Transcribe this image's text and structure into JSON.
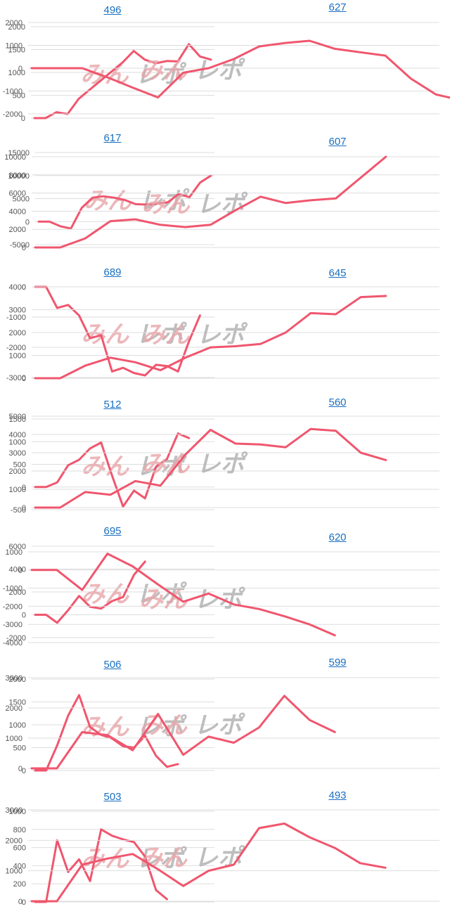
{
  "page": {
    "line_color": "#f0566e",
    "title_color": "#1a6fc0",
    "watermark": "みんレポ"
  },
  "charts": [
    {
      "title": "496",
      "yticks": [
        0,
        500,
        1000,
        1500,
        2000
      ],
      "ylim": [
        0,
        2000
      ],
      "values": [
        0,
        0,
        130,
        90,
        420,
        620,
        820,
        1020,
        1220,
        1470,
        1280,
        1200,
        1250,
        1240,
        1620,
        1350,
        1280
      ]
    },
    {
      "title": "627",
      "yticks": [
        -2000,
        -1000,
        0,
        1000,
        2000
      ],
      "ylim": [
        -2000,
        2000
      ],
      "values": [
        0,
        0,
        0,
        -400,
        -850,
        -1280,
        -200,
        0,
        400,
        950,
        1100,
        1200,
        850,
        700,
        550,
        -450,
        -1150,
        -1400
      ]
    },
    {
      "title": "617",
      "yticks": [
        -5000,
        0,
        5000,
        10000,
        15000
      ],
      "ylim": [
        -5000,
        15000
      ],
      "values": [
        0,
        0,
        -1000,
        -1500,
        3000,
        5200,
        5500,
        5200,
        4700,
        3800,
        3700,
        3900,
        4200,
        6000,
        5300,
        8500,
        10000
      ]
    },
    {
      "title": "607",
      "yticks": [
        0,
        2000,
        4000,
        6000,
        8000,
        10000
      ],
      "ylim": [
        0,
        10000
      ],
      "values": [
        0,
        0,
        1000,
        2900,
        3100,
        2500,
        2250,
        2500,
        4100,
        5600,
        4900,
        5200,
        5400,
        7700,
        10000
      ]
    },
    {
      "title": "689",
      "yticks": [
        -3000,
        -2000,
        -1000,
        0
      ],
      "ylim": [
        -3000,
        0
      ],
      "values": [
        0,
        0,
        -700,
        -600,
        -950,
        -1700,
        -1600,
        -2800,
        -2680,
        -2850,
        -2930,
        -2580,
        -2620,
        -2800,
        -1800,
        -950
      ]
    },
    {
      "title": "645",
      "yticks": [
        0,
        1000,
        2000,
        3000,
        4000
      ],
      "ylim": [
        0,
        4000
      ],
      "values": [
        0,
        0,
        550,
        900,
        700,
        350,
        900,
        1350,
        1400,
        1500,
        2000,
        2850,
        2800,
        3550,
        3600
      ]
    },
    {
      "title": "512",
      "yticks": [
        -500,
        0,
        500,
        1000,
        1500
      ],
      "ylim": [
        -500,
        1500
      ],
      "values": [
        0,
        0,
        100,
        480,
        600,
        850,
        980,
        250,
        -430,
        -80,
        -250,
        450,
        620,
        1180,
        1080
      ]
    },
    {
      "title": "560",
      "yticks": [
        0,
        1000,
        2000,
        3000,
        4000,
        5000
      ],
      "ylim": [
        0,
        5000
      ],
      "values": [
        0,
        0,
        850,
        700,
        1450,
        1200,
        2900,
        4250,
        3500,
        3450,
        3300,
        4300,
        4200,
        3000,
        2600
      ]
    },
    {
      "title": "695",
      "yticks": [
        -2000,
        0,
        2000,
        4000,
        6000
      ],
      "ylim": [
        -2000,
        6000
      ],
      "values": [
        0,
        0,
        -700,
        400,
        1650,
        700,
        550,
        1200,
        1550,
        3500,
        4650
      ]
    },
    {
      "title": "620",
      "yticks": [
        -4000,
        -3000,
        -2000,
        -1000,
        0,
        1000
      ],
      "ylim": [
        -4000,
        1000
      ],
      "values": [
        0,
        0,
        -1100,
        900,
        200,
        -800,
        -1750,
        -1300,
        -1900,
        -2150,
        -2550,
        -3000,
        -3600
      ]
    },
    {
      "title": "506",
      "yticks": [
        0,
        500,
        1000,
        1500,
        2000
      ],
      "ylim": [
        0,
        2000
      ],
      "values": [
        0,
        0,
        550,
        1200,
        1650,
        950,
        780,
        700,
        530,
        500,
        760,
        320,
        80,
        140
      ]
    },
    {
      "title": "599",
      "yticks": [
        0,
        1000,
        2000,
        3000
      ],
      "ylim": [
        0,
        3000
      ],
      "values": [
        0,
        0,
        1200,
        1100,
        600,
        1800,
        450,
        1050,
        850,
        1350,
        2400,
        1600,
        1200
      ]
    },
    {
      "title": "503",
      "yticks": [
        0,
        200,
        400,
        600,
        800,
        1000
      ],
      "ylim": [
        0,
        1000
      ],
      "values": [
        0,
        0,
        680,
        330,
        470,
        230,
        800,
        730,
        690,
        660,
        500,
        130,
        30
      ]
    },
    {
      "title": "493",
      "yticks": [
        0,
        1000,
        2000,
        3000
      ],
      "ylim": [
        0,
        3000
      ],
      "values": [
        0,
        0,
        1200,
        1400,
        1550,
        1050,
        500,
        1000,
        1200,
        2400,
        2550,
        2100,
        1750,
        1250,
        1100
      ]
    }
  ]
}
